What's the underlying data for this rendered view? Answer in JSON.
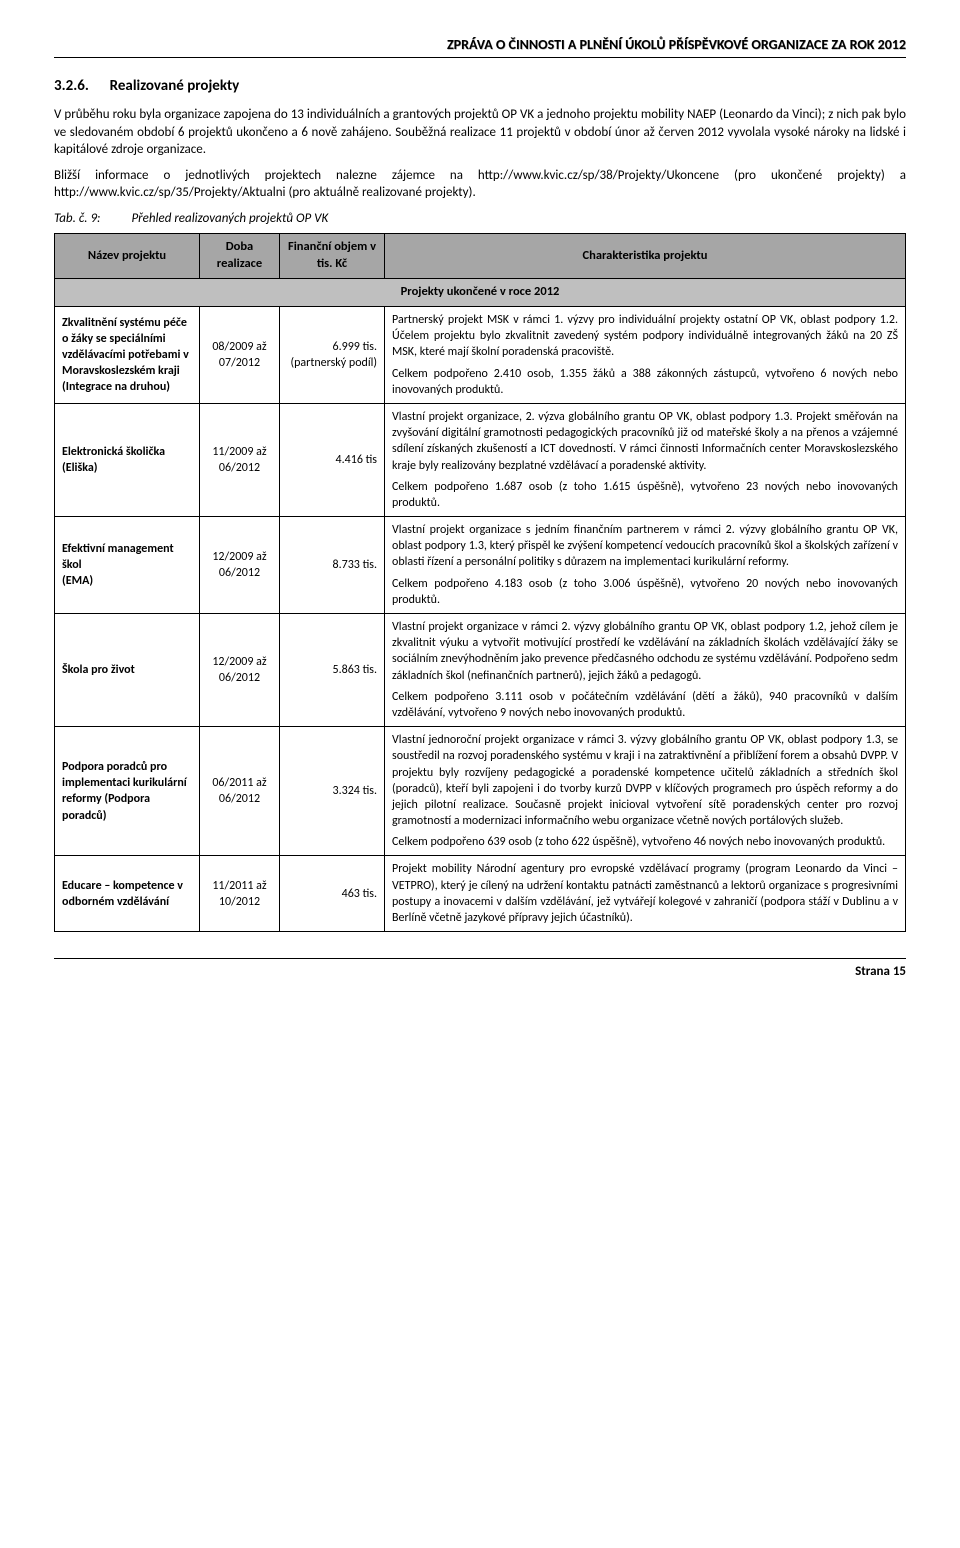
{
  "header": {
    "report_title": "ZPRÁVA O ČINNOSTI A PLNĚNÍ ÚKOLŮ PŘÍSPĚVKOVÉ ORGANIZACE ZA ROK 2012"
  },
  "section": {
    "number": "3.2.6.",
    "title": "Realizované projekty",
    "para1": "V průběhu roku byla organizace zapojena do 13 individuálních a grantových projektů OP VK a jednoho projektu mobility NAEP (Leonardo da Vinci); z nich pak bylo ve sledovaném období 6 projektů ukončeno a 6 nově zahájeno. Souběžná realizace 11 projektů v období únor až červen 2012 vyvolala vysoké nároky na lidské i kapitálové zdroje organizace.",
    "para2": "Bližší informace o jednotlivých projektech nalezne zájemce na http://www.kvic.cz/sp/38/Projekty/Ukoncene (pro ukončené projekty) a http://www.kvic.cz/sp/35/Projekty/Aktualni (pro aktuálně realizované projekty)."
  },
  "tab_caption": {
    "num": "Tab. č. 9:",
    "text": "Přehled realizovaných projektů OP VK"
  },
  "table": {
    "headers": {
      "name": "Název projektu",
      "period": "Doba realizace",
      "amount": "Finanční objem v tis. Kč",
      "desc": "Charakteristika projektu"
    },
    "subheader": "Projekty ukončené v roce 2012",
    "rows": [
      {
        "name": "Zkvalitnění systému péče o žáky se speciálními vzdělávacími potřebami v Moravskoslezském kraji\n(Integrace na druhou)",
        "period": "08/2009 až 07/2012",
        "amount": "6.999 tis. (partnerský podíl)",
        "desc": [
          "Partnerský projekt MSK v rámci 1. výzvy pro individuální projekty ostatní OP VK, oblast podpory 1.2. Účelem projektu bylo zkvalitnit zavedený systém podpory individuálně integrovaných žáků na 20 ZŠ MSK, které mají školní poradenská pracoviště.",
          "Celkem podpořeno 2.410 osob, 1.355 žáků a 388 zákonných zástupců, vytvořeno 6 nových nebo inovovaných produktů."
        ]
      },
      {
        "name": "Elektronická školička (Eliška)",
        "period": "11/2009 až 06/2012",
        "amount": "4.416 tis",
        "desc": [
          "Vlastní projekt organizace, 2. výzva globálního grantu OP VK, oblast podpory 1.3. Projekt směřován na zvyšování digitální gramotnosti pedagogických pracovníků již od mateřské školy a na přenos a vzájemné sdílení získaných zkušeností a ICT dovedností. V rámci činnosti Informačních center Moravskoslezského kraje byly realizovány bezplatné vzdělávací a poradenské aktivity.",
          "Celkem podpořeno 1.687 osob (z toho 1.615 úspěšně), vytvořeno 23 nových nebo inovovaných produktů."
        ]
      },
      {
        "name": "Efektivní management škol\n(EMA)",
        "period": "12/2009 až 06/2012",
        "amount": "8.733 tis.",
        "desc": [
          "Vlastní projekt organizace s jedním finančním partnerem v rámci 2. výzvy globálního grantu OP VK, oblast podpory 1.3, který přispěl ke zvýšení kompetencí vedoucích pracovníků škol a školských zařízení v oblasti řízení a personální politiky s důrazem na implementaci kurikulární reformy.",
          "Celkem podpořeno 4.183 osob (z toho 3.006 úspěšně), vytvořeno 20 nových nebo inovovaných produktů."
        ]
      },
      {
        "name": "Škola pro život",
        "period": "12/2009 až 06/2012",
        "amount": "5.863 tis.",
        "desc": [
          "Vlastní projekt organizace v rámci 2. výzvy globálního grantu OP VK, oblast podpory 1.2, jehož cílem je zkvalitnit výuku a vytvořit motivující prostředí ke vzdělávání na základních školách vzdělávající žáky se sociálním znevýhodněním jako prevence předčasného odchodu ze systému vzdělávání. Podpořeno sedm základních škol (nefinančních partnerů), jejich žáků a pedagogů.",
          "Celkem podpořeno 3.111 osob v počátečním vzdělávání (dětí a žáků), 940 pracovníků v dalším vzdělávání, vytvořeno 9 nových nebo inovovaných produktů."
        ]
      },
      {
        "name": "Podpora poradců pro implementaci kurikulární reformy (Podpora poradců)",
        "period": "06/2011 až 06/2012",
        "amount": "3.324 tis.",
        "desc": [
          "Vlastní jednoroční projekt organizace v rámci 3. výzvy globálního grantu OP VK, oblast podpory 1.3, se soustředil na rozvoj poradenského systému v kraji i na zatraktivnění a přiblížení forem a obsahů DVPP. V projektu byly rozvíjeny pedagogické a poradenské kompetence učitelů základních a středních škol (poradců), kteří byli zapojeni i do tvorby kurzů DVPP v klíčových programech pro úspěch reformy a do jejich pilotní realizace. Současně projekt inicioval vytvoření sítě poradenských center pro rozvoj gramotností a modernizaci informačního webu organizace včetně nových portálových služeb.",
          "Celkem podpořeno 639 osob (z toho 622 úspěšně), vytvořeno 46 nových nebo inovovaných produktů."
        ]
      },
      {
        "name": "Educare – kompetence v odborném vzdělávání",
        "period": "11/2011 až 10/2012",
        "amount": "463 tis.",
        "desc": [
          "Projekt mobility Národní agentury pro evropské vzdělávací programy (program Leonardo da Vinci – VETPRO), který je cílený na udržení kontaktu patnácti zaměstnanců a lektorů organizace s progresivními postupy a inovacemi v dalším vzdělávání, jež vytvářejí kolegové v zahraničí (podpora stáží v Dublinu a v Berlíně včetně jazykové přípravy jejich účastníků)."
        ]
      }
    ]
  },
  "footer": {
    "page": "Strana 15"
  }
}
